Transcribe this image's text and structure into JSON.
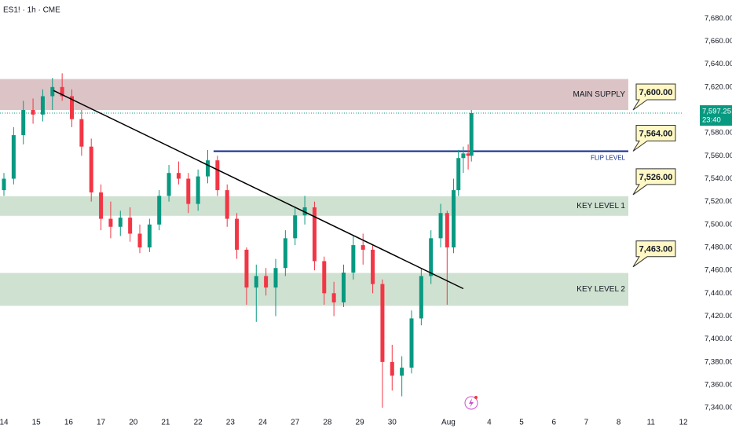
{
  "chart_data": {
    "type": "candlestick",
    "title": "ES1! · 1h · CME",
    "up_color": "#089981",
    "down_color": "#f23645",
    "candles": {
      "x": [
        0,
        0.3,
        0.6,
        0.9,
        1.2,
        1.5,
        1.8,
        2.1,
        2.4,
        2.7,
        3.0,
        3.3,
        3.6,
        3.9,
        4.2,
        4.5,
        4.8,
        5.1,
        5.4,
        5.7,
        6.0,
        6.3,
        6.6,
        6.9,
        7.2,
        7.5,
        7.8,
        8.1,
        8.4,
        8.7,
        9.0,
        9.3,
        9.6,
        9.9,
        10.2,
        10.5,
        10.8,
        11.1,
        11.4,
        11.7,
        12.0,
        12.3,
        12.6,
        12.9,
        13.2,
        13.5,
        13.7,
        13.9,
        14.05,
        14.2,
        14.35,
        14.45
      ],
      "open": [
        7530,
        7540,
        7578,
        7600,
        7596,
        7612,
        7620,
        7612,
        7592,
        7568,
        7528,
        7505,
        7498,
        7506,
        7492,
        7480,
        7500,
        7525,
        7545,
        7540,
        7518,
        7542,
        7556,
        7530,
        7505,
        7478,
        7445,
        7455,
        7445,
        7462,
        7488,
        7508,
        7515,
        7468,
        7440,
        7432,
        7458,
        7482,
        7478,
        7448,
        7380,
        7368,
        7375,
        7418,
        7455,
        7488,
        7510,
        7480,
        7530,
        7558,
        7562,
        7560
      ],
      "high": [
        7545,
        7585,
        7608,
        7610,
        7618,
        7628,
        7632,
        7618,
        7600,
        7575,
        7535,
        7520,
        7512,
        7515,
        7500,
        7505,
        7530,
        7552,
        7555,
        7545,
        7548,
        7565,
        7560,
        7535,
        7510,
        7480,
        7465,
        7462,
        7470,
        7495,
        7515,
        7525,
        7520,
        7472,
        7450,
        7465,
        7490,
        7492,
        7482,
        7452,
        7395,
        7385,
        7425,
        7462,
        7495,
        7518,
        7512,
        7540,
        7565,
        7568,
        7570,
        7600
      ],
      "low": [
        7525,
        7535,
        7570,
        7588,
        7590,
        7600,
        7608,
        7585,
        7560,
        7520,
        7495,
        7488,
        7490,
        7485,
        7475,
        7476,
        7495,
        7520,
        7535,
        7510,
        7512,
        7536,
        7525,
        7498,
        7470,
        7430,
        7415,
        7438,
        7420,
        7455,
        7482,
        7500,
        7460,
        7430,
        7420,
        7428,
        7452,
        7465,
        7440,
        7340,
        7355,
        7350,
        7370,
        7412,
        7448,
        7480,
        7430,
        7475,
        7525,
        7545,
        7548,
        7555
      ],
      "close": [
        7540,
        7578,
        7600,
        7596,
        7612,
        7620,
        7612,
        7592,
        7568,
        7528,
        7505,
        7498,
        7506,
        7492,
        7480,
        7500,
        7525,
        7545,
        7540,
        7518,
        7542,
        7556,
        7530,
        7505,
        7478,
        7445,
        7455,
        7445,
        7462,
        7488,
        7508,
        7515,
        7468,
        7440,
        7432,
        7458,
        7482,
        7478,
        7448,
        7380,
        7368,
        7375,
        7418,
        7455,
        7488,
        7510,
        7480,
        7530,
        7558,
        7562,
        7560,
        7597.25
      ]
    },
    "xlim": [
      0,
      21
    ],
    "xticks": [
      {
        "value": 0,
        "label": "14"
      },
      {
        "value": 1,
        "label": "15"
      },
      {
        "value": 2,
        "label": "16"
      },
      {
        "value": 3,
        "label": "17"
      },
      {
        "value": 4,
        "label": "20"
      },
      {
        "value": 5,
        "label": "21"
      },
      {
        "value": 6,
        "label": "22"
      },
      {
        "value": 7,
        "label": "23"
      },
      {
        "value": 8,
        "label": "24"
      },
      {
        "value": 9,
        "label": "27"
      },
      {
        "value": 10,
        "label": "28"
      },
      {
        "value": 11,
        "label": "29"
      },
      {
        "value": 12,
        "label": "30"
      },
      {
        "value": 13.74,
        "label": "Aug"
      },
      {
        "value": 15,
        "label": "4"
      },
      {
        "value": 16,
        "label": "5"
      },
      {
        "value": 17,
        "label": "6"
      },
      {
        "value": 18,
        "label": "7"
      },
      {
        "value": 19,
        "label": "8"
      },
      {
        "value": 20,
        "label": "11"
      },
      {
        "value": 21,
        "label": "12"
      }
    ],
    "ylim": [
      7336,
      7696
    ],
    "yticks": [
      {
        "value": 7340,
        "label": "7,340.00"
      },
      {
        "value": 7360,
        "label": "7,360.00"
      },
      {
        "value": 7380,
        "label": "7,380.00"
      },
      {
        "value": 7400,
        "label": "7,400.00"
      },
      {
        "value": 7420,
        "label": "7,420.00"
      },
      {
        "value": 7440,
        "label": "7,440.00"
      },
      {
        "value": 7460,
        "label": "7,460.00"
      },
      {
        "value": 7480,
        "label": "7,480.00"
      },
      {
        "value": 7500,
        "label": "7,500.00"
      },
      {
        "value": 7520,
        "label": "7,520.00"
      },
      {
        "value": 7540,
        "label": "7,540.00"
      },
      {
        "value": 7560,
        "label": "7,560.00"
      },
      {
        "value": 7580,
        "label": "7,580.00"
      },
      {
        "value": 7600,
        "label": "7,600.00"
      },
      {
        "value": 7620,
        "label": "7,620.00"
      },
      {
        "value": 7640,
        "label": "7,640.00"
      },
      {
        "value": 7660,
        "label": "7,660.00"
      },
      {
        "value": 7680,
        "label": "7,680.00"
      }
    ],
    "zones": [
      {
        "name": "MAIN SUPPLY",
        "low": 7600,
        "high": 7627,
        "color": "#dcc4c6"
      },
      {
        "name": "KEY LEVEL 1",
        "low": 7507.6,
        "high": 7524.7,
        "color": "#cfe1d1"
      },
      {
        "name": "KEY LEVEL 2",
        "low": 7429,
        "high": 7457.7,
        "color": "#cfe1d1"
      }
    ],
    "flip_level": {
      "label": "FLIP LEVEL",
      "value": 7564,
      "x_start": 6.48,
      "color": "#0d2a8a"
    },
    "trendline": {
      "x": [
        1.53,
        14.2
      ],
      "y": [
        7617,
        7444
      ],
      "color": "#000000"
    },
    "annotations": [
      {
        "value": 7600,
        "label": "7,600.00"
      },
      {
        "value": 7564,
        "label": "7,564.00"
      },
      {
        "value": 7526,
        "label": "7,526.00"
      },
      {
        "value": 7463,
        "label": "7,463.00"
      }
    ],
    "last_price": {
      "value": 7597.25,
      "label": "7,597.25"
    },
    "countdown": "23:40"
  }
}
